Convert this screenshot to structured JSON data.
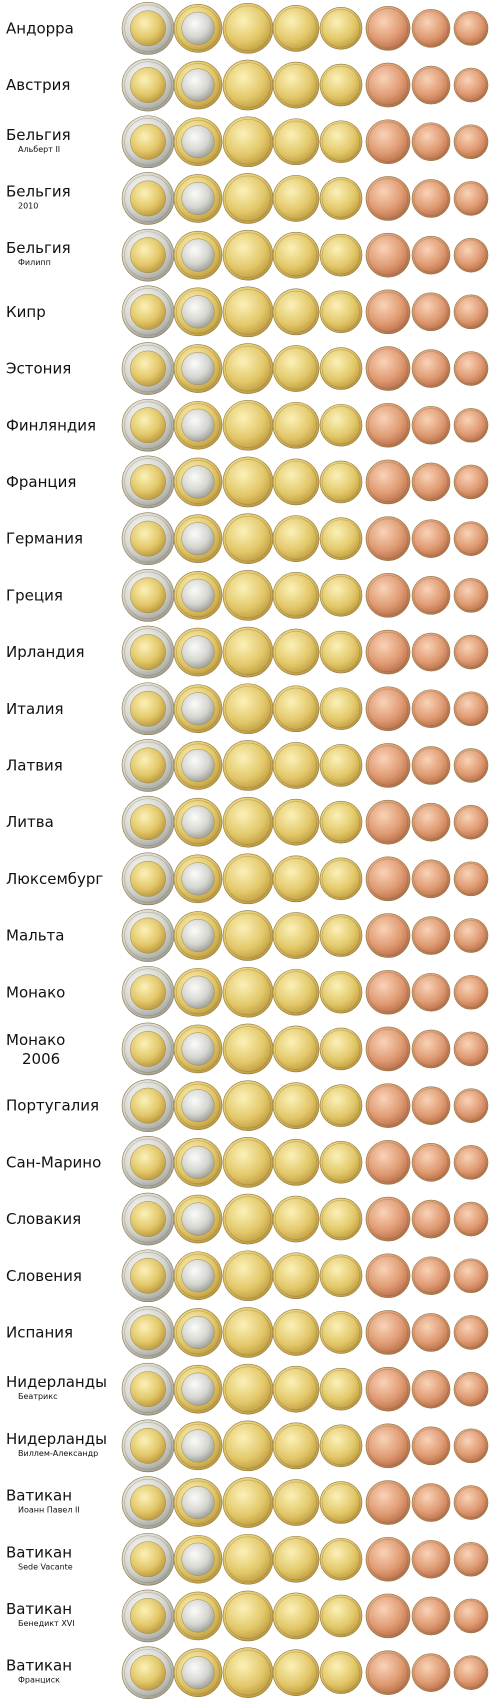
{
  "rows": [
    {
      "country": "Андорра"
    },
    {
      "country": "Австрия"
    },
    {
      "country": "Бельгия",
      "note": "Альберт II"
    },
    {
      "country": "Бельгия",
      "note": "2010"
    },
    {
      "country": "Бельгия",
      "note": "Филипп"
    },
    {
      "country": "Кипр"
    },
    {
      "country": "Эстония"
    },
    {
      "country": "Финляндия"
    },
    {
      "country": "Франция"
    },
    {
      "country": "Германия"
    },
    {
      "country": "Греция"
    },
    {
      "country": "Ирландия"
    },
    {
      "country": "Италия"
    },
    {
      "country": "Латвия"
    },
    {
      "country": "Литва"
    },
    {
      "country": "Люксембург"
    },
    {
      "country": "Мальта"
    },
    {
      "country": "Монако"
    },
    {
      "country": "Монако",
      "year": "2006"
    },
    {
      "country": "Португалия"
    },
    {
      "country": "Сан-Марино"
    },
    {
      "country": "Словакия"
    },
    {
      "country": "Словения"
    },
    {
      "country": "Испания"
    },
    {
      "country": "Нидерланды",
      "note": "Беатрикс"
    },
    {
      "country": "Нидерланды",
      "note": "Виллем-Александр"
    },
    {
      "country": "Ватикан",
      "note": "Иоанн Павел II"
    },
    {
      "country": "Ватикан",
      "note": "Sede Vacante"
    },
    {
      "country": "Ватикан",
      "note": "Бенедикт XVI"
    },
    {
      "country": "Ватикан",
      "note": "Франциск"
    }
  ]
}
